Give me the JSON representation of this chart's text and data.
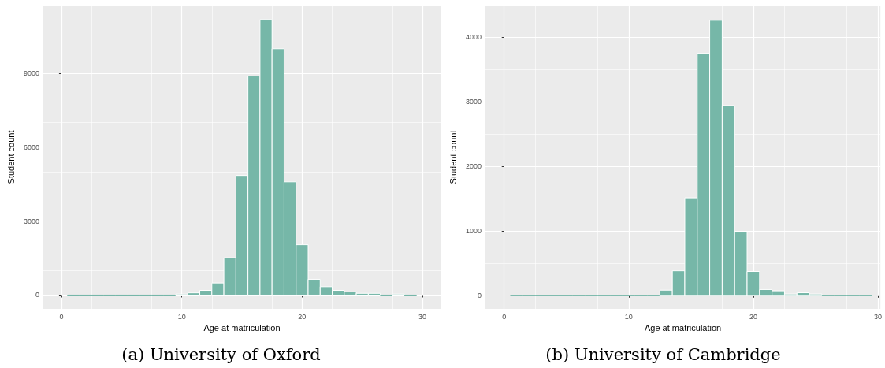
{
  "chart_data": [
    {
      "type": "histogram",
      "title": "(a) University of Oxford",
      "xlabel": "Age at matriculation",
      "ylabel": "Student count",
      "color": "#76b7a8",
      "bins": [
        0.5,
        1.5,
        2.5,
        3.5,
        4.5,
        5.5,
        6.5,
        7.5,
        8.5,
        9.5,
        10.5,
        11.5,
        12.5,
        13.5,
        14.5,
        15.5,
        16.5,
        17.5,
        18.5,
        19.5,
        20.5,
        21.5,
        22.5,
        23.5,
        24.5,
        25.5,
        26.5,
        27.5,
        28.5,
        29.5
      ],
      "values": [
        0,
        0,
        0,
        0,
        0,
        0,
        0,
        0,
        0,
        40,
        90,
        190,
        490,
        1510,
        4850,
        8880,
        11170,
        9990,
        4590,
        2040,
        640,
        340,
        190,
        130,
        70,
        70,
        0,
        40,
        0
      ],
      "xlim": [
        -1.5,
        31.5
      ],
      "xticks": [
        0,
        10,
        20,
        30
      ],
      "ylim": [
        -560,
        11740
      ],
      "yticks": [
        0,
        3000,
        6000,
        9000
      ],
      "grid": true
    },
    {
      "type": "histogram",
      "title": "(b) University of Cambridge",
      "xlabel": "Age at matriculation",
      "ylabel": "Student count",
      "color": "#76b7a8",
      "bins": [
        0.5,
        1.5,
        2.5,
        3.5,
        4.5,
        5.5,
        6.5,
        7.5,
        8.5,
        9.5,
        10.5,
        11.5,
        12.5,
        13.5,
        14.5,
        15.5,
        16.5,
        17.5,
        18.5,
        19.5,
        20.5,
        21.5,
        22.5,
        23.5,
        24.5,
        25.5,
        26.5,
        27.5,
        28.5,
        29.5
      ],
      "values": [
        0,
        0,
        0,
        0,
        0,
        0,
        0,
        0,
        0,
        0,
        0,
        0,
        80,
        380,
        1510,
        3750,
        4260,
        2940,
        980,
        370,
        90,
        70,
        20,
        40,
        20,
        0,
        0,
        0,
        0
      ],
      "xlim": [
        -1.5,
        30.2
      ],
      "xticks": [
        0,
        10,
        20,
        30
      ],
      "ylim": [
        -210,
        4490
      ],
      "yticks": [
        0,
        1000,
        2000,
        3000,
        4000
      ],
      "grid": true
    }
  ]
}
